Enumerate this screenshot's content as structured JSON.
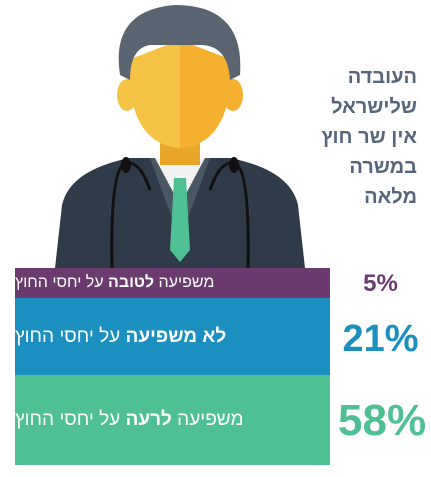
{
  "title_lines": [
    "העובדה",
    "שלישראל",
    "אין שר חוץ",
    "במשרה",
    "מלאה"
  ],
  "rows": [
    {
      "before": "משפיעה ",
      "bold": "לטובה",
      "after": " על יחסי החוץ",
      "percent": "5%"
    },
    {
      "before": "",
      "bold": "לא משפיעה",
      "after": " על יחסי החוץ",
      "percent": "21%"
    },
    {
      "before": "משפיעה ",
      "bold": "לרעה",
      "after": " על יחסי החוץ",
      "percent": "58%"
    }
  ]
}
